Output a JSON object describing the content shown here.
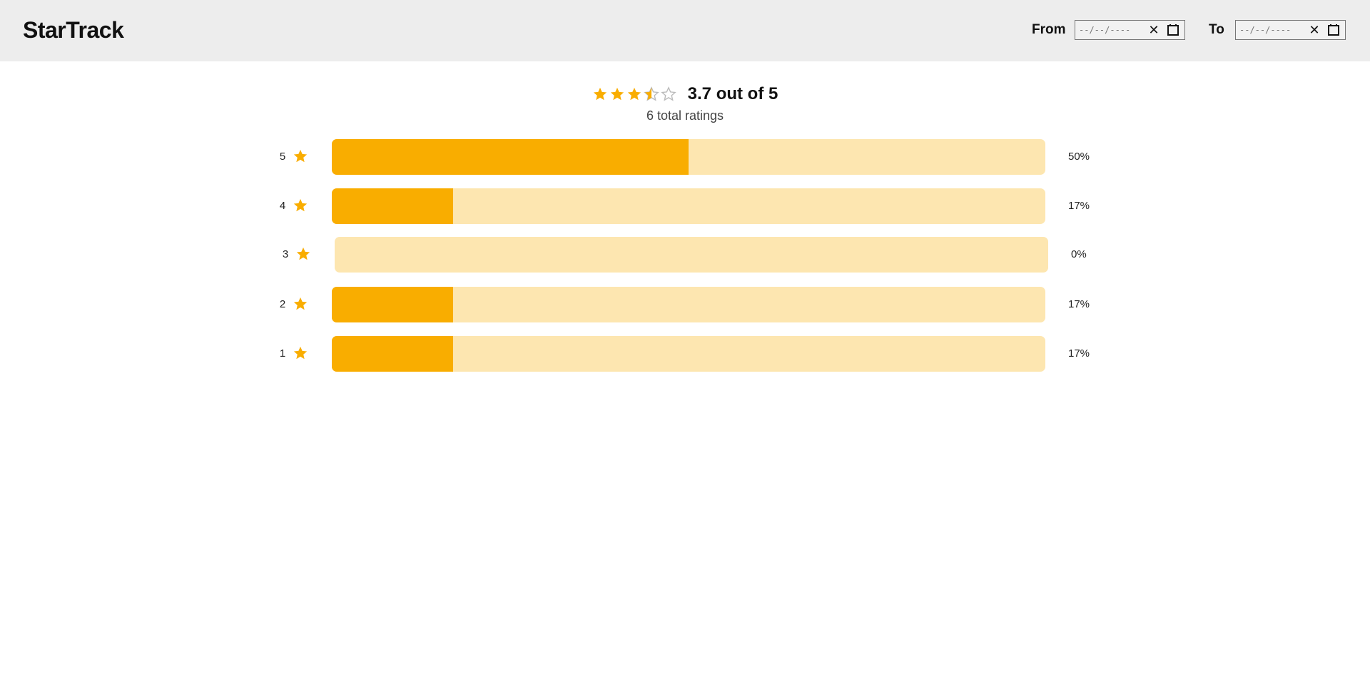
{
  "header": {
    "logo": "StarTrack",
    "from_label": "From",
    "to_label": "To",
    "from_placeholder": "--/--/----",
    "to_placeholder": "--/--/----",
    "clear_glyph": "✕"
  },
  "summary": {
    "rating": 3.7,
    "rating_text": "3.7 out of 5",
    "total_text": "6 total ratings"
  },
  "colors": {
    "accent": "#f9ad00",
    "track": "#fde6b0",
    "empty_star": "#bbbbbb"
  },
  "rows": [
    {
      "stars": "5",
      "percent": 0.5,
      "percent_text": "50%"
    },
    {
      "stars": "4",
      "percent": 0.17,
      "percent_text": "17%"
    },
    {
      "stars": "3",
      "percent": 0.0,
      "percent_text": "0%"
    },
    {
      "stars": "2",
      "percent": 0.17,
      "percent_text": "17%"
    },
    {
      "stars": "1",
      "percent": 0.17,
      "percent_text": "17%"
    }
  ]
}
